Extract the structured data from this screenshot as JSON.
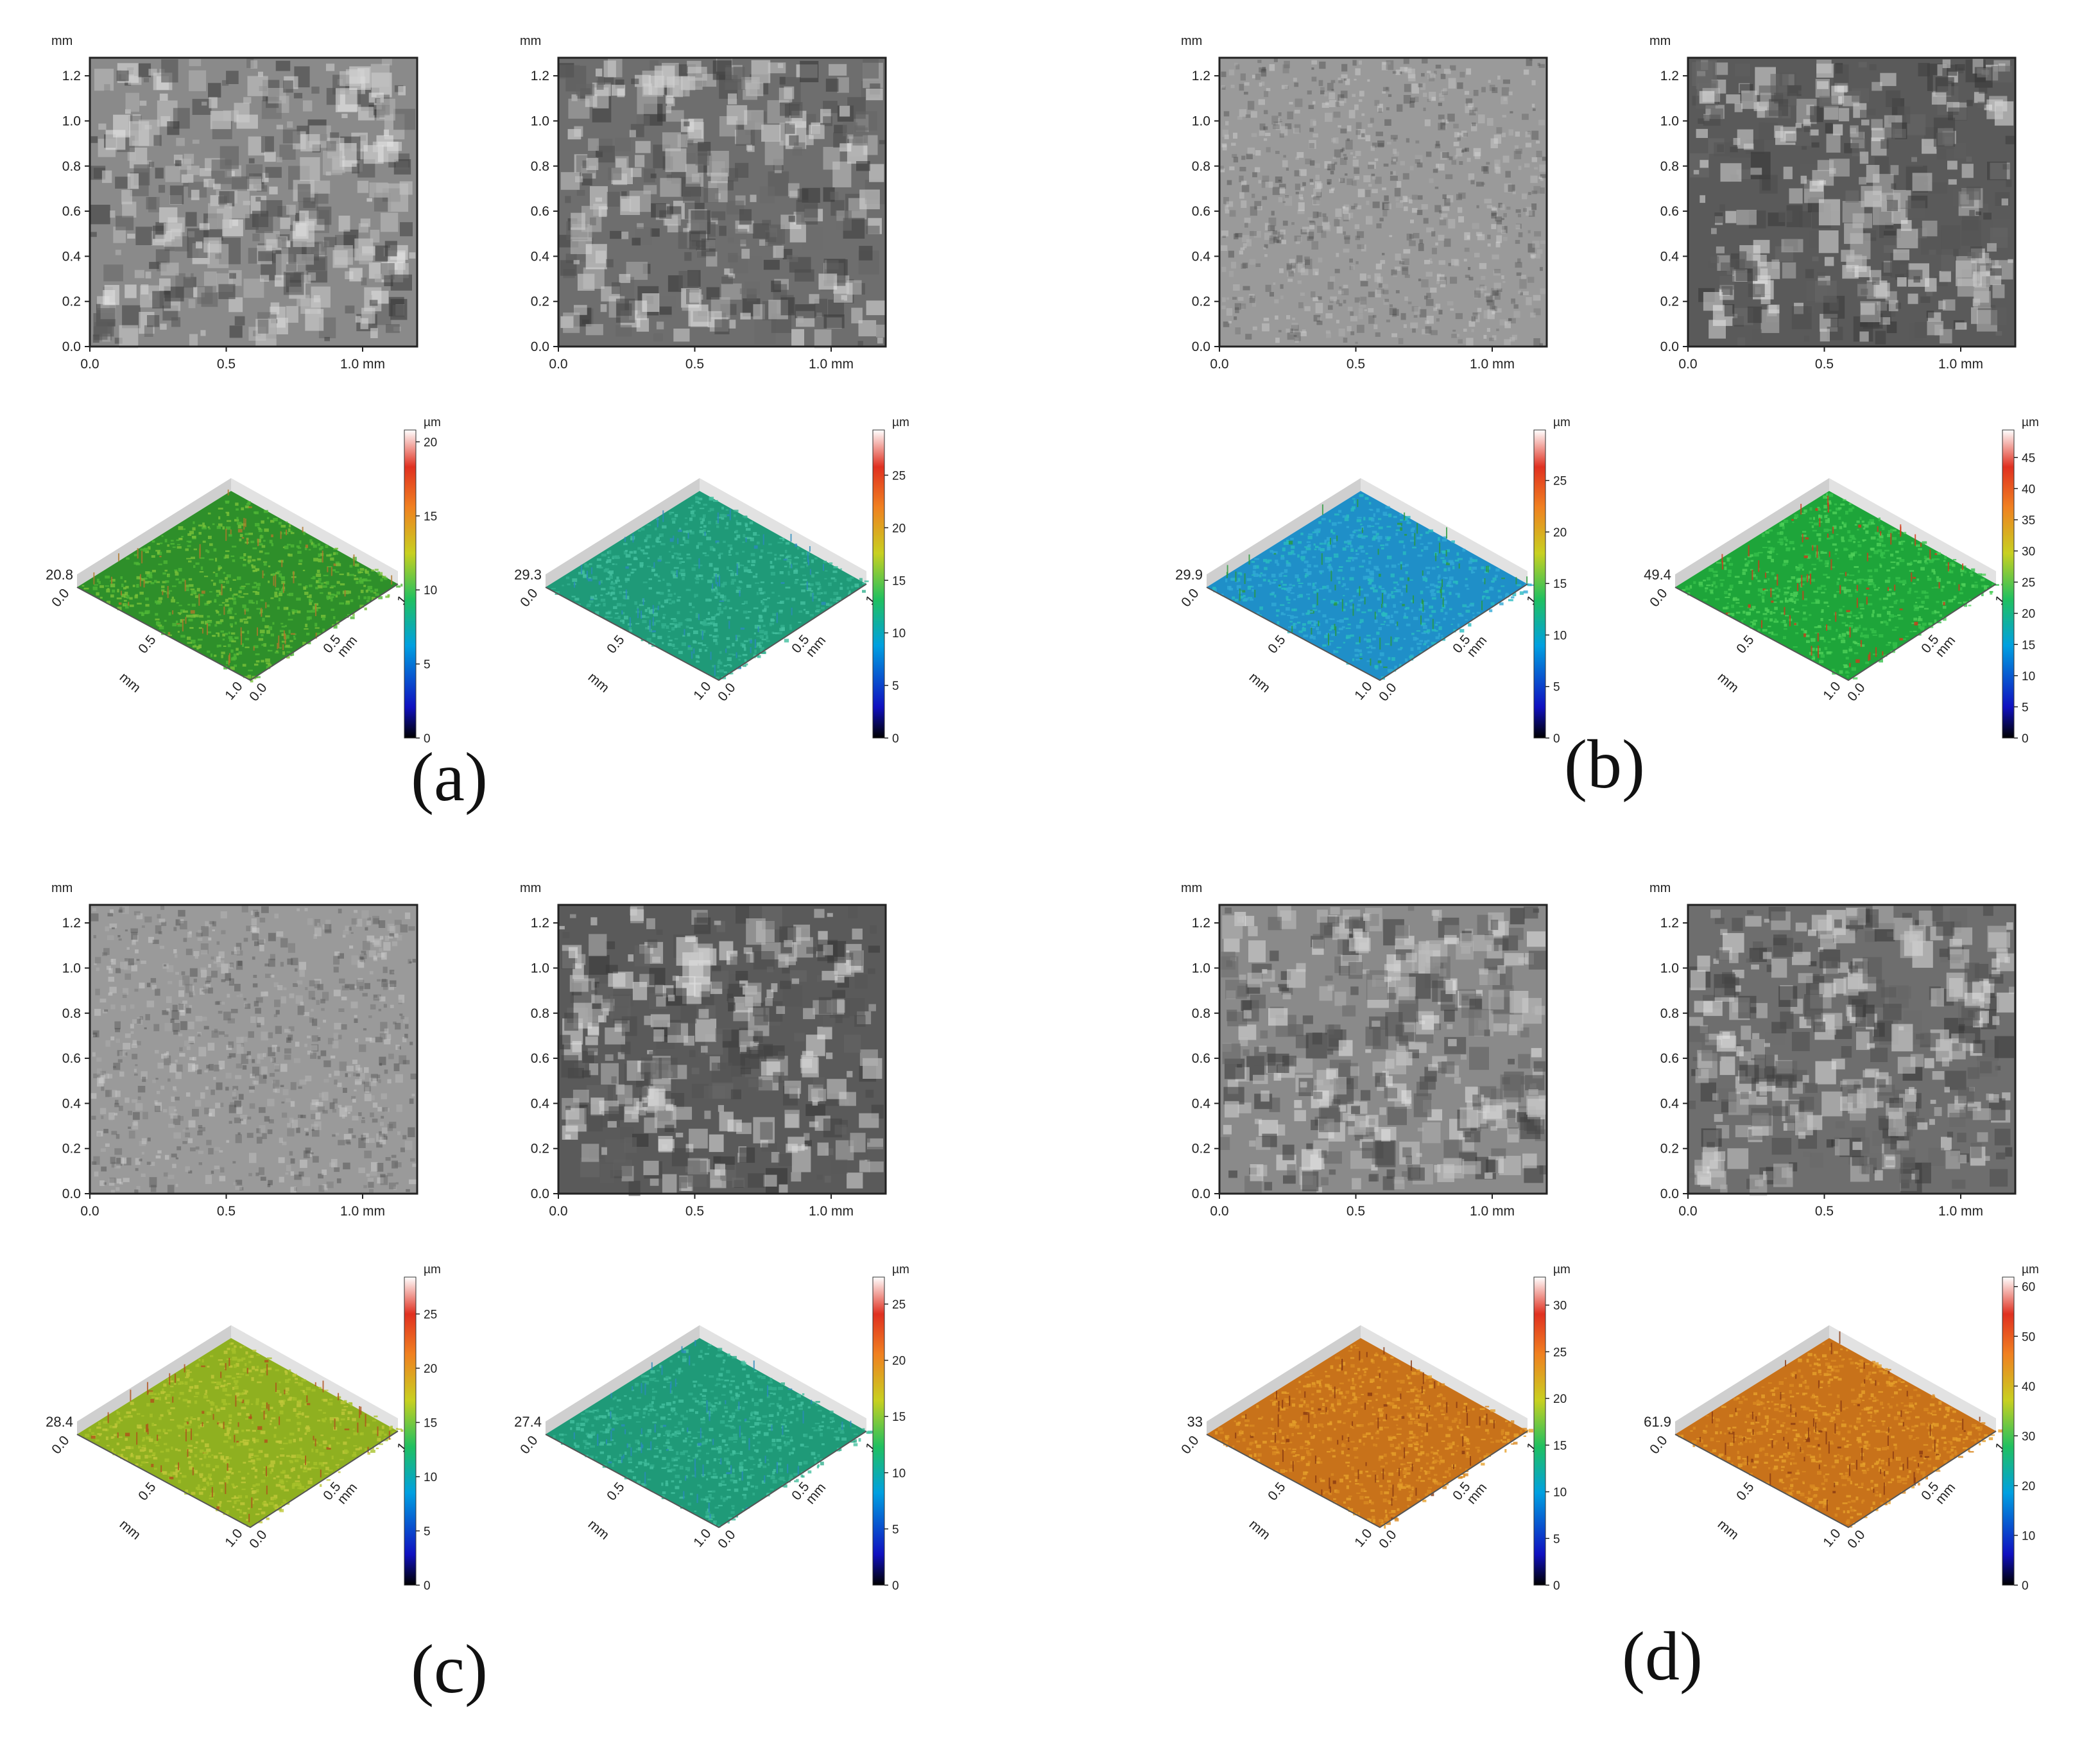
{
  "figure": {
    "panels": [
      {
        "label": "(a)",
        "tiles": [
          {
            "kind": "micrograph",
            "tone": "dark-light",
            "y_ticks": [
              "0.0",
              "0.2",
              "0.4",
              "0.6",
              "0.8",
              "1.0",
              "1.2"
            ],
            "x_ticks": [
              "0.0",
              "0.5",
              "1.0 mm"
            ],
            "unit": "mm"
          },
          {
            "kind": "micrograph",
            "tone": "mottled-dark",
            "y_ticks": [
              "0.0",
              "0.2",
              "0.4",
              "0.6",
              "0.8",
              "1.0",
              "1.2"
            ],
            "x_ticks": [
              "0.0",
              "0.5",
              "1.0 mm"
            ],
            "unit": "mm"
          },
          {
            "kind": "surface3d",
            "height": "20.8",
            "palette": "green",
            "colorbar_ticks": [
              "0",
              "5",
              "10",
              "15",
              "20"
            ],
            "unit": "µm",
            "x_ticks": [
              "0.0",
              "0.5",
              "1.0"
            ],
            "y_ticks": [
              "0.0",
              "0.5",
              "1.0"
            ],
            "axis_unit": "mm"
          },
          {
            "kind": "surface3d",
            "height": "29.3",
            "palette": "teal",
            "colorbar_ticks": [
              "0",
              "5",
              "10",
              "15",
              "20",
              "25"
            ],
            "unit": "µm",
            "x_ticks": [
              "0.0",
              "0.5",
              "1.0"
            ],
            "y_ticks": [
              "0.0",
              "0.5",
              "1.0"
            ],
            "axis_unit": "mm"
          }
        ]
      },
      {
        "label": "(b)",
        "tiles": [
          {
            "kind": "micrograph",
            "tone": "fine-gray",
            "y_ticks": [
              "0.0",
              "0.2",
              "0.4",
              "0.6",
              "0.8",
              "1.0",
              "1.2"
            ],
            "x_ticks": [
              "0.0",
              "0.5",
              "1.0 mm"
            ],
            "unit": "mm"
          },
          {
            "kind": "micrograph",
            "tone": "high-contrast",
            "y_ticks": [
              "0.0",
              "0.2",
              "0.4",
              "0.6",
              "0.8",
              "1.0",
              "1.2"
            ],
            "x_ticks": [
              "0.0",
              "0.5",
              "1.0 mm"
            ],
            "unit": "mm"
          },
          {
            "kind": "surface3d",
            "height": "29.9",
            "palette": "cyan",
            "colorbar_ticks": [
              "0",
              "5",
              "10",
              "15",
              "20",
              "25"
            ],
            "unit": "µm",
            "x_ticks": [
              "0.0",
              "0.5",
              "1.0"
            ],
            "y_ticks": [
              "0.0",
              "0.5",
              "1.0"
            ],
            "axis_unit": "mm"
          },
          {
            "kind": "surface3d",
            "height": "49.4",
            "palette": "green-spiky",
            "colorbar_ticks": [
              "0",
              "5",
              "10",
              "15",
              "20",
              "25",
              "30",
              "35",
              "40",
              "45"
            ],
            "unit": "µm",
            "x_ticks": [
              "0.0",
              "0.5",
              "1.0"
            ],
            "y_ticks": [
              "0.0",
              "0.5",
              "1.0"
            ],
            "axis_unit": "mm"
          }
        ]
      },
      {
        "label": "(c)",
        "tiles": [
          {
            "kind": "micrograph",
            "tone": "fine-gray",
            "y_ticks": [
              "0.0",
              "0.2",
              "0.4",
              "0.6",
              "0.8",
              "1.0",
              "1.2"
            ],
            "x_ticks": [
              "0.0",
              "0.5",
              "1.0 mm"
            ],
            "unit": "mm"
          },
          {
            "kind": "micrograph",
            "tone": "high-contrast",
            "y_ticks": [
              "0.0",
              "0.2",
              "0.4",
              "0.6",
              "0.8",
              "1.0",
              "1.2"
            ],
            "x_ticks": [
              "0.0",
              "0.5",
              "1.0 mm"
            ],
            "unit": "mm"
          },
          {
            "kind": "surface3d",
            "height": "28.4",
            "palette": "olive",
            "colorbar_ticks": [
              "0",
              "5",
              "10",
              "15",
              "20",
              "25"
            ],
            "unit": "µm",
            "x_ticks": [
              "0.0",
              "0.5",
              "1.0"
            ],
            "y_ticks": [
              "0.0",
              "0.5",
              "1.0"
            ],
            "axis_unit": "mm"
          },
          {
            "kind": "surface3d",
            "height": "27.4",
            "palette": "teal",
            "colorbar_ticks": [
              "0",
              "5",
              "10",
              "15",
              "20",
              "25"
            ],
            "unit": "µm",
            "x_ticks": [
              "0.0",
              "0.5",
              "1.0"
            ],
            "y_ticks": [
              "0.0",
              "0.5",
              "1.0"
            ],
            "axis_unit": "mm"
          }
        ]
      },
      {
        "label": "(d)",
        "tiles": [
          {
            "kind": "micrograph",
            "tone": "dark-light",
            "y_ticks": [
              "0.0",
              "0.2",
              "0.4",
              "0.6",
              "0.8",
              "1.0",
              "1.2"
            ],
            "x_ticks": [
              "0.0",
              "0.5",
              "1.0 mm"
            ],
            "unit": "mm"
          },
          {
            "kind": "micrograph",
            "tone": "mottled-dark",
            "y_ticks": [
              "0.0",
              "0.2",
              "0.4",
              "0.6",
              "0.8",
              "1.0",
              "1.2"
            ],
            "x_ticks": [
              "0.0",
              "0.5",
              "1.0 mm"
            ],
            "unit": "mm"
          },
          {
            "kind": "surface3d",
            "height": "33",
            "palette": "orange",
            "colorbar_ticks": [
              "0",
              "5",
              "10",
              "15",
              "20",
              "25",
              "30"
            ],
            "unit": "µm",
            "x_ticks": [
              "0.0",
              "0.5",
              "1.0"
            ],
            "y_ticks": [
              "0.0",
              "0.5",
              "1.0"
            ],
            "axis_unit": "mm"
          },
          {
            "kind": "surface3d",
            "height": "61.9",
            "palette": "orange",
            "colorbar_ticks": [
              "0",
              "10",
              "20",
              "30",
              "40",
              "50",
              "60"
            ],
            "unit": "µm",
            "x_ticks": [
              "0.0",
              "0.5",
              "1.0"
            ],
            "y_ticks": [
              "0.0",
              "0.5",
              "1.0"
            ],
            "axis_unit": "mm"
          }
        ]
      }
    ]
  },
  "palettes": {
    "green": [
      "#2e8f2a",
      "#4fb636",
      "#79c23a",
      "#b0782a"
    ],
    "teal": [
      "#1f9a78",
      "#33b08f",
      "#45c0a0",
      "#2a8bbd"
    ],
    "cyan": [
      "#1f8fc8",
      "#31a9d6",
      "#29bcc0",
      "#2a9b3a"
    ],
    "green-spiky": [
      "#1ea53a",
      "#36c04b",
      "#4fd15a",
      "#d03a1a"
    ],
    "olive": [
      "#8fb020",
      "#a8c22a",
      "#c0c83a",
      "#b0501a"
    ],
    "orange": [
      "#c8721a",
      "#d98a22",
      "#e6a02a",
      "#8a3a12"
    ]
  }
}
